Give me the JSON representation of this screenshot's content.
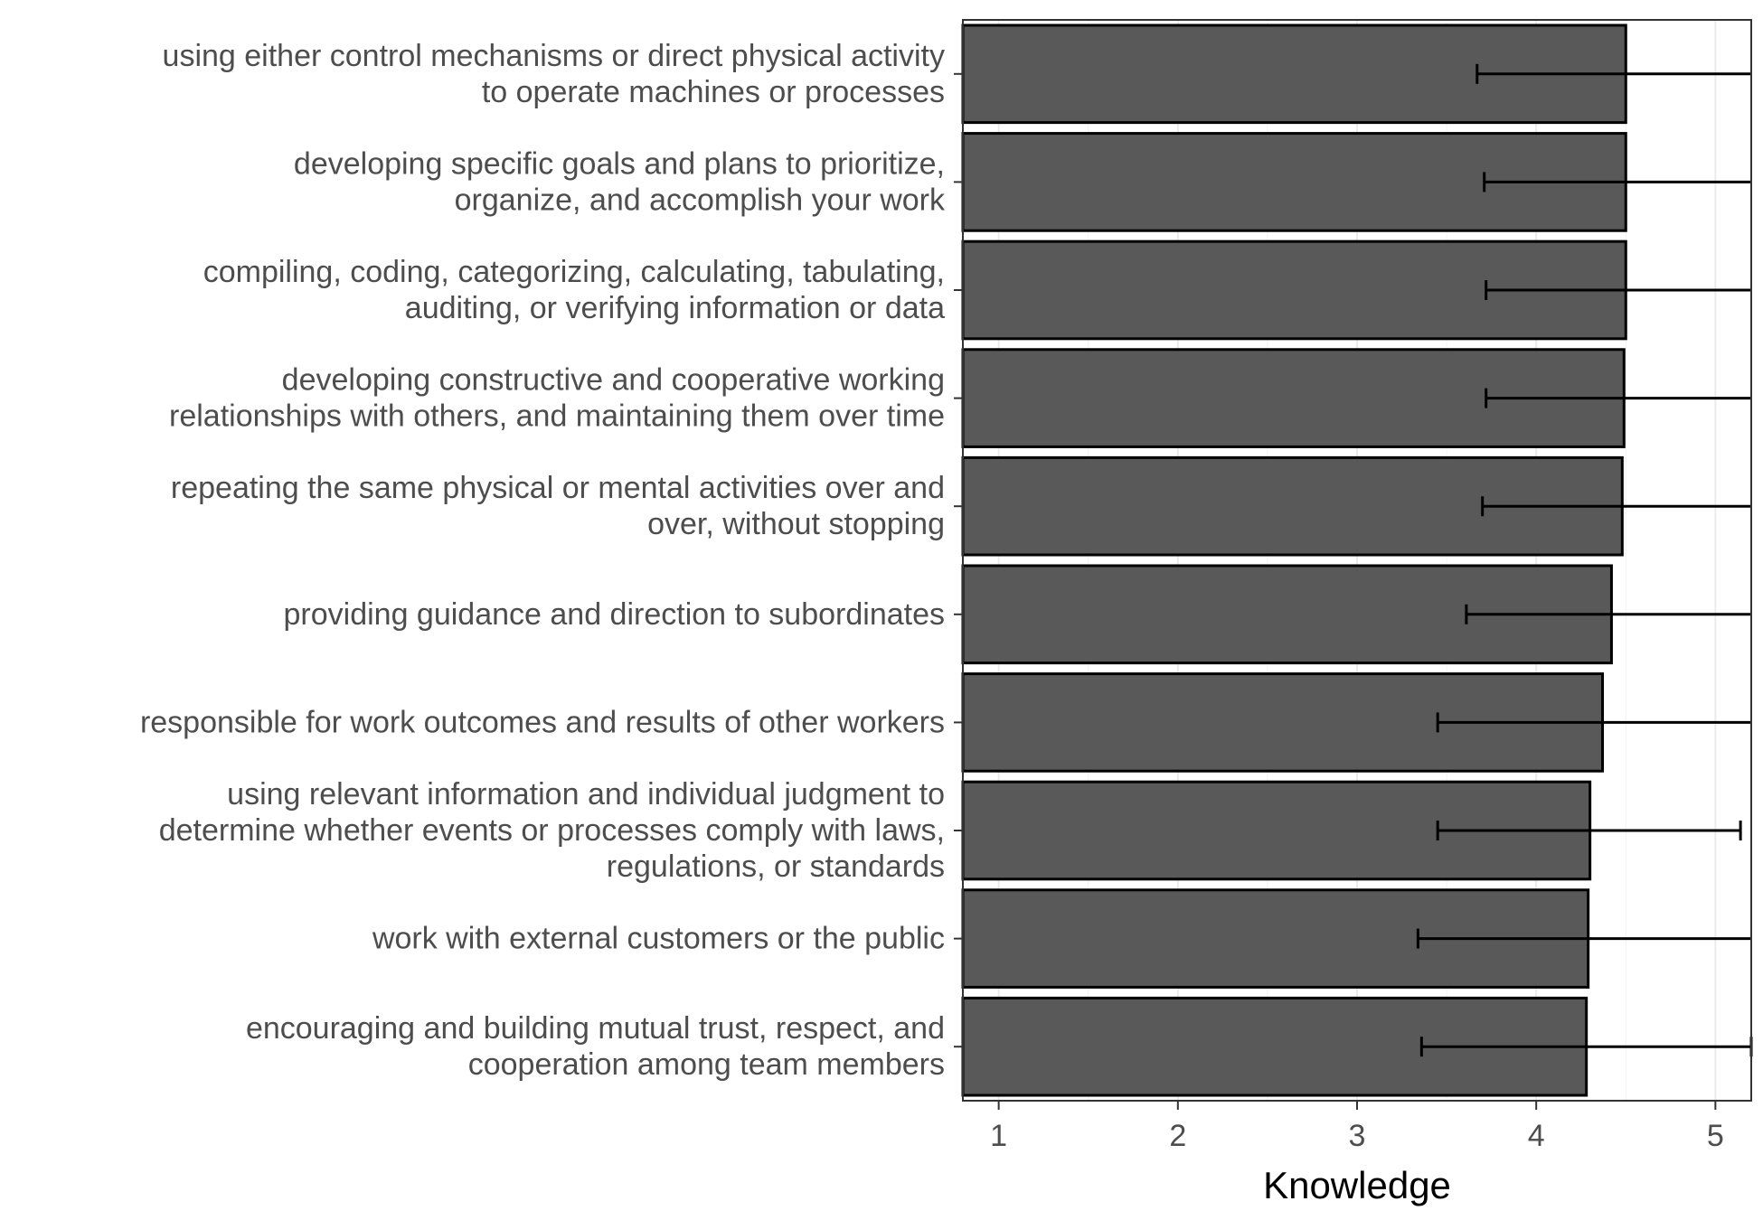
{
  "chart_data": {
    "type": "bar",
    "orientation": "horizontal",
    "xlabel": "Knowledge",
    "ylabel": "",
    "xlim": [
      0.8,
      5.2
    ],
    "xticks": [
      1,
      2,
      3,
      4,
      5
    ],
    "grid": true,
    "colors": {
      "bar": "#595959",
      "bar_outline": "#000000",
      "errorbar": "#000000",
      "grid_major": "#ebebeb",
      "grid_minor": "#f2f2f2"
    },
    "categories": [
      [
        "using either control mechanisms or direct physical activity",
        "to operate machines or processes"
      ],
      [
        "developing specific goals and plans to prioritize,",
        "organize, and accomplish your work"
      ],
      [
        "compiling, coding, categorizing, calculating, tabulating,",
        "auditing, or verifying information or data"
      ],
      [
        "developing constructive and cooperative working",
        "relationships with others, and maintaining them over time"
      ],
      [
        "repeating the same physical or mental activities over and",
        "over, without stopping"
      ],
      [
        "providing guidance and direction to subordinates"
      ],
      [
        "responsible for work outcomes and results of other workers"
      ],
      [
        "using relevant information and individual judgment to",
        "determine whether events or processes comply with laws,",
        "regulations, or standards"
      ],
      [
        "work with external customers or the public"
      ],
      [
        "encouraging and building mutual trust, respect, and",
        "cooperation among team members"
      ]
    ],
    "values": [
      4.5,
      4.5,
      4.5,
      4.49,
      4.48,
      4.42,
      4.37,
      4.3,
      4.29,
      4.28
    ],
    "error_low": [
      3.67,
      3.71,
      3.72,
      3.72,
      3.7,
      3.61,
      3.45,
      3.45,
      3.34,
      3.36
    ],
    "error_high": [
      5.33,
      5.29,
      5.28,
      5.26,
      5.26,
      5.23,
      5.29,
      5.14,
      5.24,
      5.2
    ]
  }
}
